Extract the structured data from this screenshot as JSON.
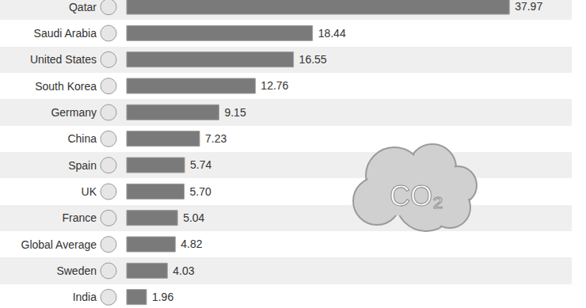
{
  "chart_data": {
    "type": "bar",
    "orientation": "horizontal",
    "categories": [
      "Qatar",
      "Saudi Arabia",
      "United States",
      "South Korea",
      "Germany",
      "China",
      "Spain",
      "UK",
      "France",
      "Global Average",
      "Sweden",
      "India"
    ],
    "values": [
      37.97,
      18.44,
      16.55,
      12.76,
      9.15,
      7.23,
      5.74,
      5.7,
      5.04,
      4.82,
      4.03,
      1.96
    ],
    "value_labels": [
      "37.97",
      "18.44",
      "16.55",
      "12.76",
      "9.15",
      "7.23",
      "5.74",
      "5.70",
      "5.04",
      "4.82",
      "4.03",
      "1.96"
    ],
    "data_labels": true,
    "tick_labels": "y",
    "color": "#7a7a7a",
    "annotation": "CO₂"
  }
}
